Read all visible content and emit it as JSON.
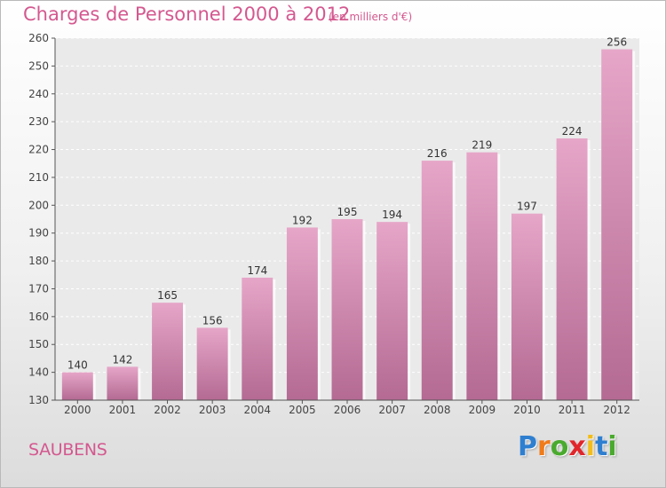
{
  "header": {
    "title": "Charges de Personnel 2000 à 2012",
    "subtitle": "(en milliers d'€)"
  },
  "footer": {
    "location": "SAUBENS",
    "brand": {
      "letters": [
        "P",
        "r",
        "o",
        "x",
        "i",
        "t",
        "i"
      ],
      "colors": [
        "#2f7fd0",
        "#ef7b1a",
        "#4aaa2e",
        "#e1262b",
        "#f2bd1a",
        "#2f7fd0",
        "#4aaa2e"
      ]
    }
  },
  "chart_data": {
    "type": "bar",
    "categories": [
      "2000",
      "2001",
      "2002",
      "2003",
      "2004",
      "2005",
      "2006",
      "2007",
      "2008",
      "2009",
      "2010",
      "2011",
      "2012"
    ],
    "values": [
      140,
      142,
      165,
      156,
      174,
      192,
      195,
      194,
      216,
      219,
      197,
      224,
      256
    ],
    "data_labels": [
      "140",
      "142",
      "165",
      "156",
      "174",
      "192",
      "195",
      "194",
      "216",
      "219",
      "197",
      "224",
      "256"
    ],
    "title": "Charges de Personnel 2000 à 2012",
    "subtitle": "(en milliers d'€)",
    "ylim": [
      130,
      260
    ],
    "yticks": [
      130,
      140,
      150,
      160,
      170,
      180,
      190,
      200,
      210,
      220,
      230,
      240,
      250,
      260
    ],
    "ytick_labels": [
      "130",
      "140",
      "150",
      "160",
      "170",
      "180",
      "190",
      "200",
      "210",
      "220",
      "230",
      "240",
      "250",
      "260"
    ],
    "grid": true,
    "legend": "none",
    "bar_color": "#d68db4"
  }
}
